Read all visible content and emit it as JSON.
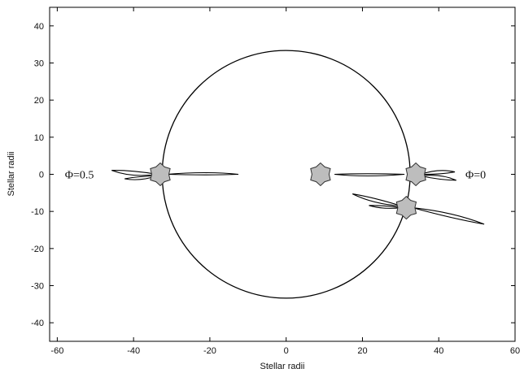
{
  "chart_data": {
    "type": "scatter",
    "title": "",
    "xlabel": "Stellar radii",
    "ylabel": "Stellar radii",
    "xlim": [
      -62,
      60
    ],
    "ylim": [
      -45,
      45
    ],
    "x_ticks": [
      -60,
      -40,
      -20,
      0,
      20,
      40,
      60
    ],
    "y_ticks": [
      -40,
      -30,
      -20,
      -10,
      0,
      10,
      20,
      30,
      40
    ],
    "grid": false,
    "orbit": {
      "center": [
        0,
        0
      ],
      "radius": 32.5
    },
    "stars": [
      {
        "x": -33,
        "y": 0
      },
      {
        "x": 9,
        "y": 0
      },
      {
        "x": 34,
        "y": 0
      },
      {
        "x": 31.5,
        "y": -9
      }
    ],
    "annotations": [
      {
        "text": "Φ=0.5",
        "x": -58,
        "y": 0
      },
      {
        "text": "Φ=0",
        "x": 47,
        "y": 0
      }
    ],
    "colors": {
      "star_fill": "#bdbdbd",
      "line": "#000000"
    }
  }
}
